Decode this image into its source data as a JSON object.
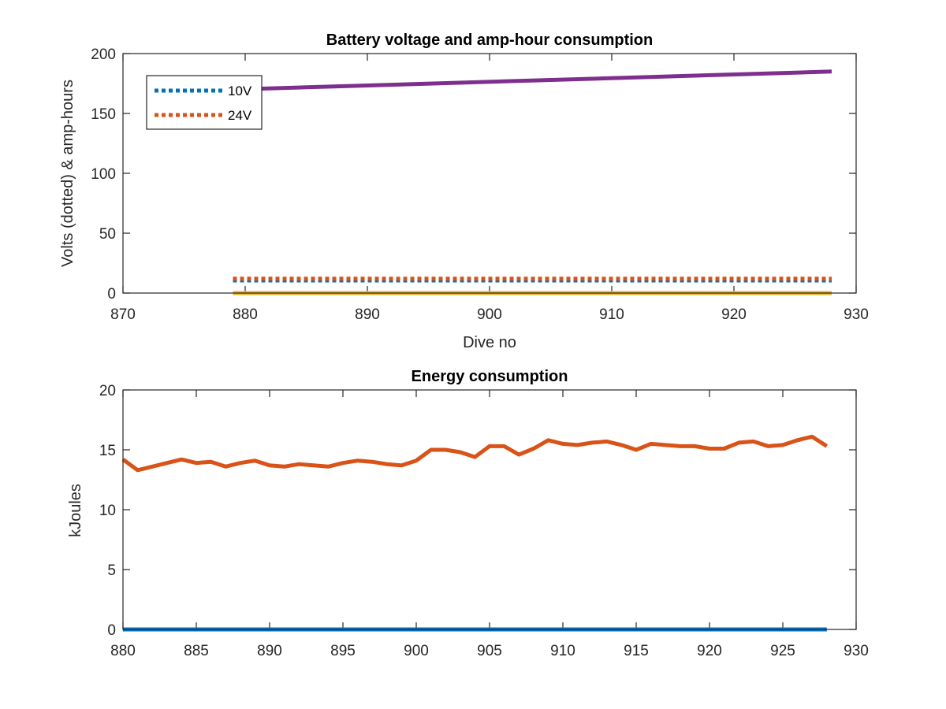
{
  "colors": {
    "blue": "#0072BD",
    "orange": "#D95319",
    "yellow": "#EDB120",
    "purple": "#7E2F8E",
    "axis": "#262626",
    "background": "#ffffff"
  },
  "chart_data": [
    {
      "type": "line",
      "title": "Battery voltage and amp-hour consumption",
      "xlabel": "Dive no",
      "ylabel": "Volts (dotted) & amp-hours",
      "xlim": [
        870,
        930
      ],
      "ylim": [
        0,
        200
      ],
      "xticks": [
        870,
        880,
        890,
        900,
        910,
        920,
        930
      ],
      "yticks": [
        0,
        50,
        100,
        150,
        200
      ],
      "grid": false,
      "legend": {
        "location": "top-left",
        "entries": [
          "10V",
          "24V"
        ]
      },
      "series": [
        {
          "name": "10V",
          "style": "dotted",
          "color": "#0072BD",
          "x": [
            879,
            928
          ],
          "y": [
            10.5,
            10.5
          ]
        },
        {
          "name": "24V",
          "style": "dotted",
          "color": "#D95319",
          "x": [
            879,
            928
          ],
          "y": [
            12,
            12
          ]
        },
        {
          "style": "solid",
          "color": "#EDB120",
          "x": [
            879,
            928
          ],
          "y": [
            0,
            0
          ]
        },
        {
          "style": "solid",
          "color": "#7E2F8E",
          "x": [
            879,
            928
          ],
          "y": [
            170,
            185
          ]
        }
      ]
    },
    {
      "type": "line",
      "title": "Energy consumption",
      "xlabel": "",
      "ylabel": "kJoules",
      "xlim": [
        880,
        930
      ],
      "ylim": [
        0,
        20
      ],
      "xticks": [
        880,
        885,
        890,
        895,
        900,
        905,
        910,
        915,
        920,
        925,
        930
      ],
      "yticks": [
        0,
        5,
        10,
        15,
        20
      ],
      "grid": false,
      "series": [
        {
          "style": "solid",
          "color": "#0072BD",
          "x": [
            880,
            928
          ],
          "y": [
            0,
            0
          ]
        },
        {
          "style": "solid",
          "color": "#D95319",
          "x": [
            880,
            881,
            882,
            883,
            884,
            885,
            886,
            887,
            888,
            889,
            890,
            891,
            892,
            893,
            894,
            895,
            896,
            897,
            898,
            899,
            900,
            901,
            902,
            903,
            904,
            905,
            906,
            907,
            908,
            909,
            910,
            911,
            912,
            913,
            914,
            915,
            916,
            917,
            918,
            919,
            920,
            921,
            922,
            923,
            924,
            925,
            926,
            927,
            928
          ],
          "y": [
            14.2,
            13.3,
            13.6,
            13.9,
            14.2,
            13.9,
            14.0,
            13.6,
            13.9,
            14.1,
            13.7,
            13.6,
            13.8,
            13.7,
            13.6,
            13.9,
            14.1,
            14.0,
            13.8,
            13.7,
            14.1,
            15.0,
            15.0,
            14.8,
            14.4,
            15.3,
            15.3,
            14.6,
            15.1,
            15.8,
            15.5,
            15.4,
            15.6,
            15.7,
            15.4,
            15.0,
            15.5,
            15.4,
            15.3,
            15.3,
            15.1,
            15.1,
            15.6,
            15.7,
            15.3,
            15.4,
            15.8,
            16.1,
            15.3
          ]
        }
      ]
    }
  ]
}
